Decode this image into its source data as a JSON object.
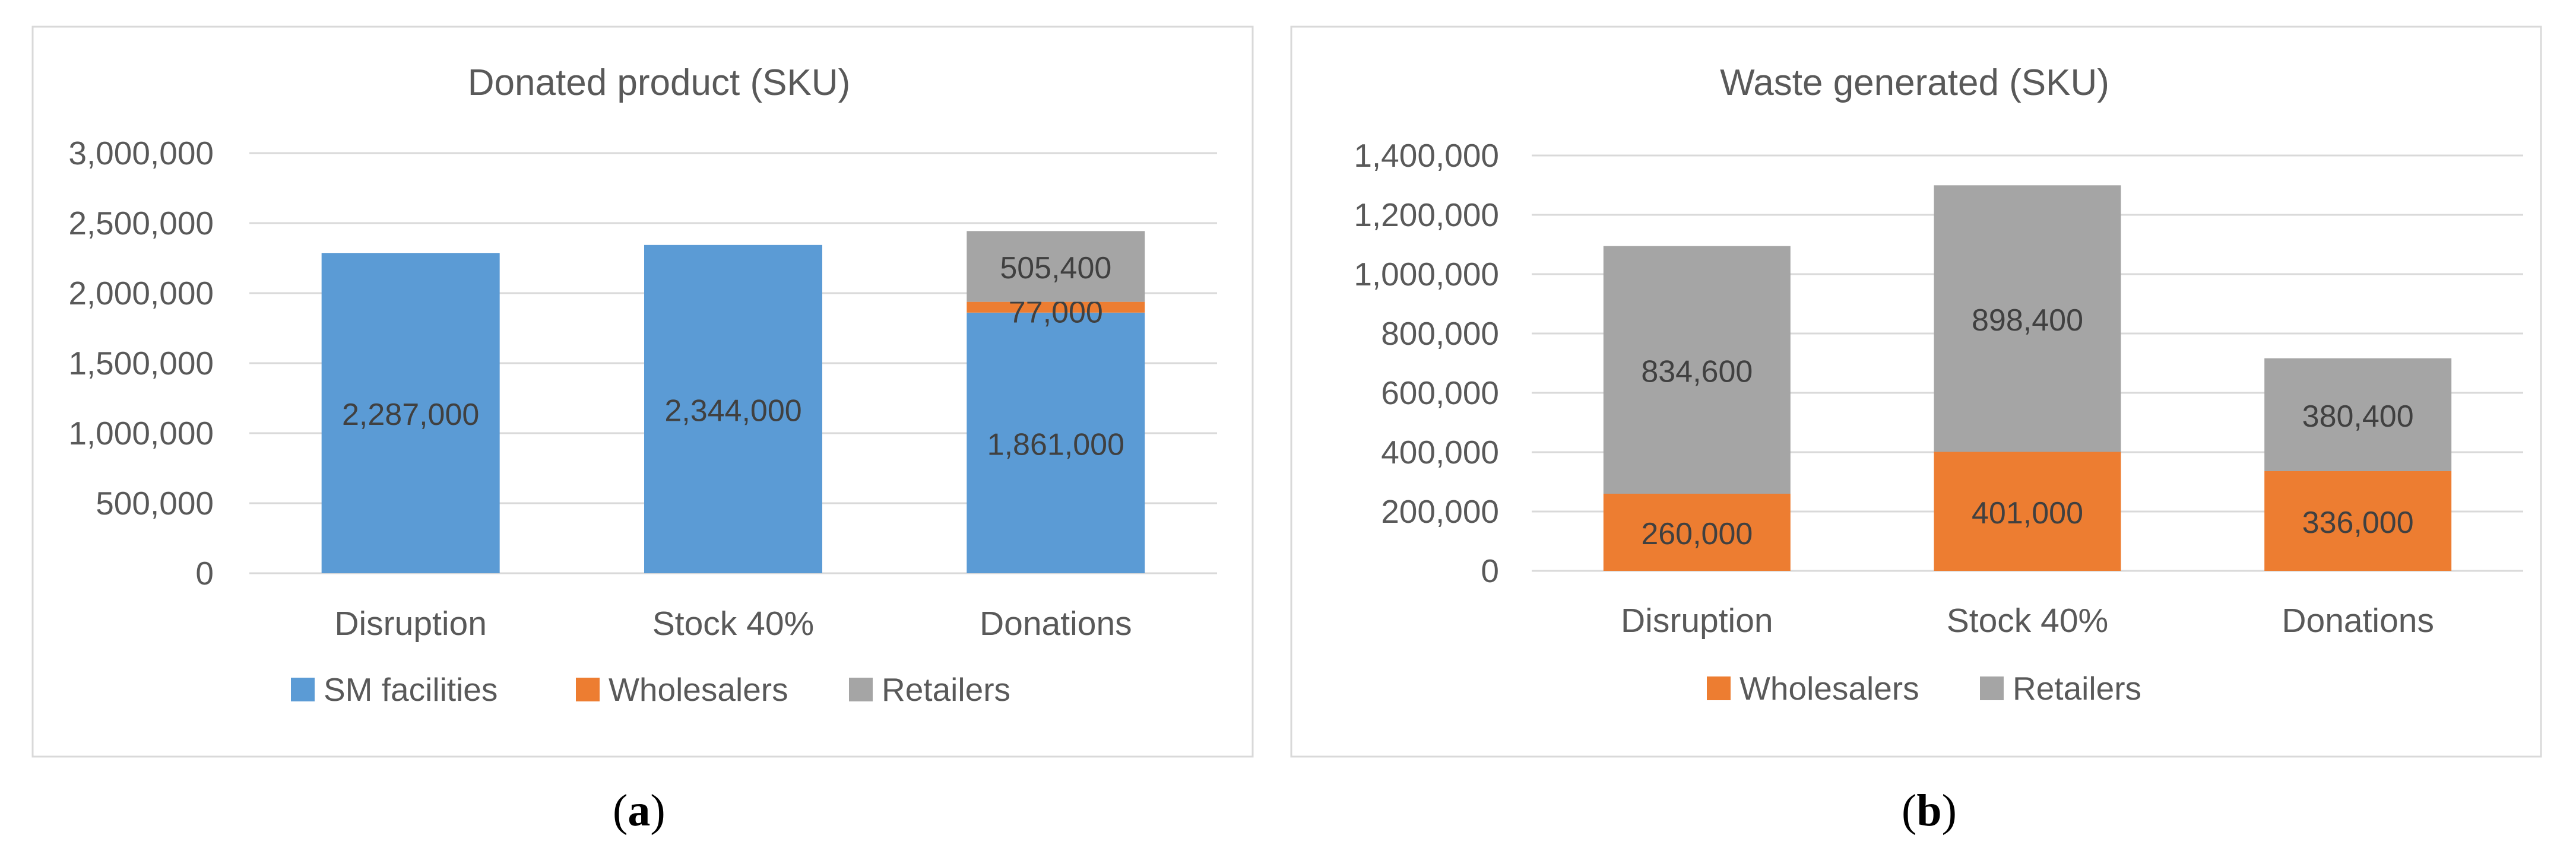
{
  "chart_data": [
    {
      "type": "bar",
      "stacked": true,
      "title": "Donated product (SKU)",
      "categories": [
        "Disruption",
        "Stock 40%",
        "Donations"
      ],
      "series": [
        {
          "name": "SM facilities",
          "color": "#5b9bd5",
          "values": [
            2287000,
            2344000,
            1861000
          ],
          "labels": [
            "2,287,000",
            "2,344,000",
            "1,861,000"
          ]
        },
        {
          "name": "Wholesalers",
          "color": "#ed7d31",
          "values": [
            0,
            0,
            77000
          ],
          "labels": [
            "",
            "",
            "77,000"
          ]
        },
        {
          "name": "Retailers",
          "color": "#a5a5a5",
          "values": [
            0,
            0,
            505400
          ],
          "labels": [
            "",
            "",
            "505,400"
          ]
        }
      ],
      "ylim": [
        0,
        3000000
      ],
      "yticks": [
        0,
        500000,
        1000000,
        1500000,
        2000000,
        2500000,
        3000000
      ],
      "ytick_labels": [
        "0",
        "500,000",
        "1,000,000",
        "1,500,000",
        "2,000,000",
        "2,500,000",
        "3,000,000"
      ],
      "legend_position": "bottom",
      "grid": true
    },
    {
      "type": "bar",
      "stacked": true,
      "title": "Waste generated (SKU)",
      "categories": [
        "Disruption",
        "Stock 40%",
        "Donations"
      ],
      "series": [
        {
          "name": "Wholesalers",
          "color": "#ed7d31",
          "values": [
            260000,
            401000,
            336000
          ],
          "labels": [
            "260,000",
            "401,000",
            "336,000"
          ]
        },
        {
          "name": "Retailers",
          "color": "#a5a5a5",
          "values": [
            834600,
            898400,
            380400
          ],
          "labels": [
            "834,600",
            "898,400",
            "380,400"
          ]
        }
      ],
      "ylim": [
        0,
        1400000
      ],
      "yticks": [
        0,
        200000,
        400000,
        600000,
        800000,
        1000000,
        1200000,
        1400000
      ],
      "ytick_labels": [
        "0",
        "200,000",
        "400,000",
        "600,000",
        "800,000",
        "1,000,000",
        "1,200,000",
        "1,400,000"
      ],
      "legend_position": "bottom",
      "grid": true
    }
  ],
  "captions": [
    {
      "open": "(",
      "letter": "a",
      "close": ")"
    },
    {
      "open": "(",
      "letter": "b",
      "close": ")"
    }
  ]
}
